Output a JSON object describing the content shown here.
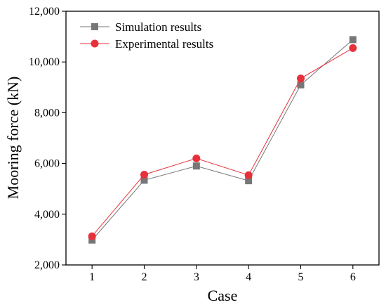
{
  "chart_data": {
    "type": "line",
    "title": "",
    "xlabel": "Case",
    "ylabel": "Mooring force (kN)",
    "x": [
      1,
      2,
      3,
      4,
      5,
      6
    ],
    "x_tick_labels": [
      "1",
      "2",
      "3",
      "4",
      "5",
      "6"
    ],
    "xlim": [
      0.5,
      6.5
    ],
    "ylim": [
      2000,
      12000
    ],
    "y_ticks": [
      2000,
      4000,
      6000,
      8000,
      10000,
      12000
    ],
    "y_tick_labels": [
      "2,000",
      "4,000",
      "6,000",
      "8,000",
      "10,000",
      "12,000"
    ],
    "grid": false,
    "legend_position": "top-left",
    "series": [
      {
        "name": "Simulation results",
        "marker": "square",
        "color": "#777777",
        "values": [
          2980,
          5340,
          5900,
          5320,
          9100,
          10880
        ]
      },
      {
        "name": "Experimental results",
        "marker": "circle",
        "color": "#e8303a",
        "values": [
          3130,
          5560,
          6200,
          5540,
          9350,
          10550
        ]
      }
    ]
  }
}
